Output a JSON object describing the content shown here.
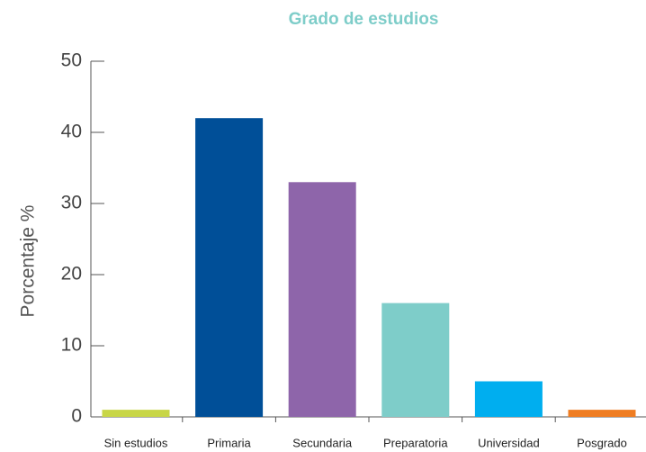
{
  "chart_data": {
    "type": "bar",
    "title": "Grado de estudios",
    "y_label": "Porcentaje %",
    "categories": [
      "Sin estudios",
      "Primaria",
      "Secundaria",
      "Preparatoria",
      "Universidad",
      "Posgrado"
    ],
    "values": [
      1,
      42,
      33,
      16,
      5,
      1
    ],
    "colors": [
      "#c8d647",
      "#004f98",
      "#8e65aa",
      "#7ecdc9",
      "#00aeef",
      "#ef7d22"
    ],
    "ylim": [
      0,
      50
    ],
    "yticks": [
      0,
      10,
      20,
      30,
      40,
      50
    ],
    "grid": false
  }
}
